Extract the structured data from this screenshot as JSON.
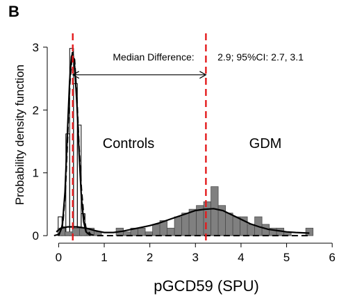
{
  "chart_data": {
    "type": "histogram-density",
    "panel_label": "B",
    "xlabel": "pGCD59 (SPU)",
    "ylabel": "Probability density function",
    "xlim": [
      -0.25,
      6.15
    ],
    "ylim": [
      -0.12,
      3.22
    ],
    "x_ticks": [
      0,
      1,
      2,
      3,
      4,
      5,
      6
    ],
    "y_ticks": [
      0,
      1,
      2,
      3
    ],
    "group_labels": {
      "controls": "Controls",
      "gdm": "GDM"
    },
    "annotation": {
      "median_difference_label": "Median Difference:",
      "ci_text": "2.9; 95%CI: 2.7, 3.1",
      "arrow_from": 0.31,
      "arrow_to": 3.23,
      "arrow_y": 2.56
    },
    "median_lines": [
      {
        "group": "controls",
        "x": 0.31,
        "color": "#e41a1c"
      },
      {
        "group": "gdm",
        "x": 3.23,
        "color": "#e41a1c"
      }
    ],
    "controls_histogram": {
      "bin_width": 0.084,
      "fill": "none",
      "edge_color": "#000000",
      "bins": [
        {
          "x0": -0.01,
          "h": 0.3
        },
        {
          "x0": 0.074,
          "h": 0.14
        },
        {
          "x0": 0.158,
          "h": 1.62
        },
        {
          "x0": 0.242,
          "h": 2.98
        },
        {
          "x0": 0.326,
          "h": 2.42
        },
        {
          "x0": 0.41,
          "h": 1.76
        },
        {
          "x0": 0.494,
          "h": 0.35
        },
        {
          "x0": 0.578,
          "h": 0.07
        }
      ]
    },
    "gdm_histogram": {
      "bin_width": 0.16,
      "fill": "#808080",
      "edge_color": "#4d4d4d",
      "bins": [
        {
          "x0": -0.02,
          "h": 0.12
        },
        {
          "x0": 0.14,
          "h": 0.06
        },
        {
          "x0": 0.3,
          "h": 0.12
        },
        {
          "x0": 0.46,
          "h": 0.12
        },
        {
          "x0": 0.62,
          "h": 0.12
        },
        {
          "x0": 0.78,
          "h": 0.06
        },
        {
          "x0": 1.26,
          "h": 0.12
        },
        {
          "x0": 1.42,
          "h": 0.06
        },
        {
          "x0": 1.58,
          "h": 0.12
        },
        {
          "x0": 1.74,
          "h": 0.12
        },
        {
          "x0": 1.9,
          "h": 0.06
        },
        {
          "x0": 2.06,
          "h": 0.18
        },
        {
          "x0": 2.22,
          "h": 0.24
        },
        {
          "x0": 2.38,
          "h": 0.12
        },
        {
          "x0": 2.54,
          "h": 0.3
        },
        {
          "x0": 2.7,
          "h": 0.36
        },
        {
          "x0": 2.86,
          "h": 0.42
        },
        {
          "x0": 3.02,
          "h": 0.48
        },
        {
          "x0": 3.18,
          "h": 0.54
        },
        {
          "x0": 3.34,
          "h": 0.78
        },
        {
          "x0": 3.5,
          "h": 0.48
        },
        {
          "x0": 3.66,
          "h": 0.36
        },
        {
          "x0": 3.82,
          "h": 0.3
        },
        {
          "x0": 3.98,
          "h": 0.3
        },
        {
          "x0": 4.14,
          "h": 0.18
        },
        {
          "x0": 4.3,
          "h": 0.3
        },
        {
          "x0": 4.46,
          "h": 0.18
        },
        {
          "x0": 4.62,
          "h": 0.12
        },
        {
          "x0": 4.78,
          "h": 0.12
        },
        {
          "x0": 4.94,
          "h": 0.06
        },
        {
          "x0": 5.42,
          "h": 0.12
        }
      ]
    },
    "series": [
      {
        "name": "Controls",
        "style": "dashed",
        "color": "#000000",
        "points": [
          [
            -0.1,
            0.0
          ],
          [
            0.0,
            0.02
          ],
          [
            0.05,
            0.08
          ],
          [
            0.1,
            0.25
          ],
          [
            0.15,
            0.75
          ],
          [
            0.2,
            1.6
          ],
          [
            0.25,
            2.45
          ],
          [
            0.3,
            2.92
          ],
          [
            0.35,
            2.8
          ],
          [
            0.4,
            2.2
          ],
          [
            0.45,
            1.4
          ],
          [
            0.5,
            0.75
          ],
          [
            0.55,
            0.32
          ],
          [
            0.6,
            0.12
          ],
          [
            0.7,
            0.02
          ],
          [
            0.8,
            0.0
          ],
          [
            1.5,
            0.0
          ],
          [
            3.0,
            0.0
          ],
          [
            5.5,
            0.0
          ]
        ]
      },
      {
        "name": "GDM",
        "style": "solid",
        "color": "#000000",
        "points": [
          [
            -0.05,
            0.06
          ],
          [
            0.05,
            0.12
          ],
          [
            0.2,
            0.14
          ],
          [
            0.4,
            0.14
          ],
          [
            0.6,
            0.12
          ],
          [
            0.8,
            0.08
          ],
          [
            1.0,
            0.05
          ],
          [
            1.2,
            0.05
          ],
          [
            1.4,
            0.07
          ],
          [
            1.6,
            0.1
          ],
          [
            1.8,
            0.13
          ],
          [
            2.0,
            0.16
          ],
          [
            2.2,
            0.2
          ],
          [
            2.4,
            0.25
          ],
          [
            2.6,
            0.3
          ],
          [
            2.8,
            0.35
          ],
          [
            3.0,
            0.4
          ],
          [
            3.2,
            0.42
          ],
          [
            3.4,
            0.43
          ],
          [
            3.6,
            0.4
          ],
          [
            3.8,
            0.33
          ],
          [
            4.0,
            0.26
          ],
          [
            4.2,
            0.19
          ],
          [
            4.4,
            0.14
          ],
          [
            4.6,
            0.1
          ],
          [
            4.8,
            0.08
          ],
          [
            5.0,
            0.06
          ],
          [
            5.2,
            0.05
          ],
          [
            5.5,
            0.04
          ]
        ]
      },
      {
        "name": "Controls peak",
        "style": "solid",
        "color": "#000000",
        "points": [
          [
            0.0,
            0.0
          ],
          [
            0.08,
            0.15
          ],
          [
            0.14,
            0.7
          ],
          [
            0.19,
            1.6
          ],
          [
            0.24,
            2.45
          ],
          [
            0.28,
            2.85
          ],
          [
            0.31,
            2.9
          ],
          [
            0.35,
            2.7
          ],
          [
            0.4,
            2.1
          ],
          [
            0.45,
            1.3
          ],
          [
            0.5,
            0.6
          ],
          [
            0.55,
            0.22
          ],
          [
            0.6,
            0.06
          ],
          [
            0.7,
            0.0
          ]
        ]
      }
    ],
    "grid": false,
    "legend": "none"
  }
}
